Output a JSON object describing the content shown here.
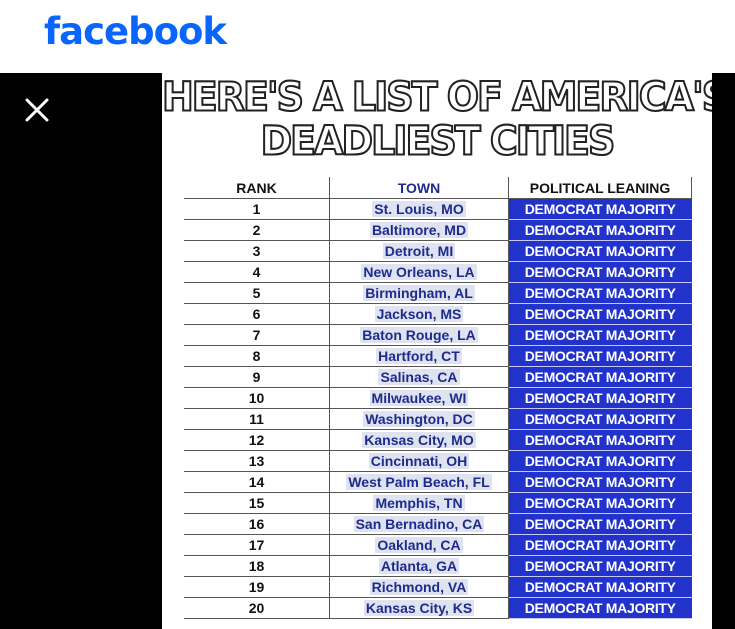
{
  "header": {
    "logo_text": "facebook"
  },
  "viewer": {
    "close_icon": "close-icon",
    "title_line1": "HERE'S A LIST OF AMERICA'S",
    "title_line2": "DEADLIEST CITIES",
    "table": {
      "columns": [
        "RANK",
        "TOWN",
        "POLITICAL LEANING"
      ],
      "rows": [
        {
          "rank": "1",
          "town": "St. Louis, MO",
          "leaning": "DEMOCRAT MAJORITY"
        },
        {
          "rank": "2",
          "town": "Baltimore, MD",
          "leaning": "DEMOCRAT MAJORITY"
        },
        {
          "rank": "3",
          "town": "Detroit, MI",
          "leaning": "DEMOCRAT MAJORITY"
        },
        {
          "rank": "4",
          "town": "New Orleans, LA",
          "leaning": "DEMOCRAT MAJORITY"
        },
        {
          "rank": "5",
          "town": "Birmingham, AL",
          "leaning": "DEMOCRAT MAJORITY"
        },
        {
          "rank": "6",
          "town": "Jackson, MS",
          "leaning": "DEMOCRAT MAJORITY"
        },
        {
          "rank": "7",
          "town": "Baton Rouge, LA",
          "leaning": "DEMOCRAT MAJORITY"
        },
        {
          "rank": "8",
          "town": "Hartford, CT",
          "leaning": "DEMOCRAT MAJORITY"
        },
        {
          "rank": "9",
          "town": "Salinas, CA",
          "leaning": "DEMOCRAT MAJORITY"
        },
        {
          "rank": "10",
          "town": "Milwaukee, WI",
          "leaning": "DEMOCRAT MAJORITY"
        },
        {
          "rank": "11",
          "town": "Washington, DC",
          "leaning": "DEMOCRAT MAJORITY"
        },
        {
          "rank": "12",
          "town": "Kansas City, MO",
          "leaning": "DEMOCRAT MAJORITY"
        },
        {
          "rank": "13",
          "town": "Cincinnati, OH",
          "leaning": "DEMOCRAT MAJORITY"
        },
        {
          "rank": "14",
          "town": "West Palm Beach, FL",
          "leaning": "DEMOCRAT MAJORITY"
        },
        {
          "rank": "15",
          "town": "Memphis, TN",
          "leaning": "DEMOCRAT MAJORITY"
        },
        {
          "rank": "16",
          "town": "San Bernadino, CA",
          "leaning": "DEMOCRAT MAJORITY"
        },
        {
          "rank": "17",
          "town": "Oakland, CA",
          "leaning": "DEMOCRAT MAJORITY"
        },
        {
          "rank": "18",
          "town": "Atlanta, GA",
          "leaning": "DEMOCRAT MAJORITY"
        },
        {
          "rank": "19",
          "town": "Richmond, VA",
          "leaning": "DEMOCRAT MAJORITY"
        },
        {
          "rank": "20",
          "town": "Kansas City, KS",
          "leaning": "DEMOCRAT MAJORITY"
        }
      ]
    }
  },
  "colors": {
    "brand": "#0866ff",
    "leaning_bg": "#2233cc",
    "town_text": "#1e2b8e"
  }
}
